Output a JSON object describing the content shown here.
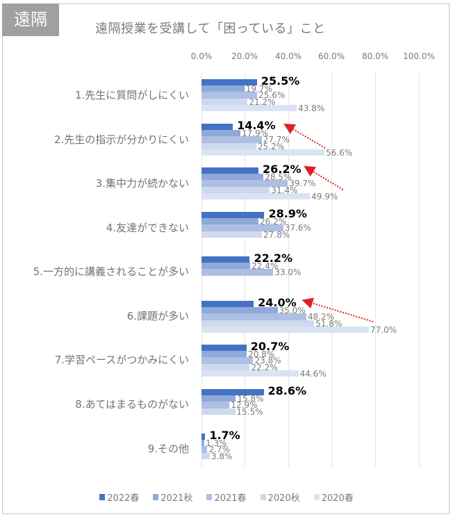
{
  "tag": "遠隔",
  "title": "遠隔授業を受講して「困っている」こと",
  "colors": {
    "2022春": "#4472c4",
    "2021秋": "#8fa9d9",
    "2021春": "#adc0e3",
    "2020秋": "#cfd9ee",
    "2020春": "#dae3f3",
    "arrow": "#e02020"
  },
  "chart_data": {
    "type": "bar",
    "orientation": "horizontal",
    "title": "遠隔授業を受講して「困っている」こと",
    "xlabel": "",
    "ylabel": "",
    "xlim": [
      0,
      100
    ],
    "xticks": [
      "0.0%",
      "20.0%",
      "40.0%",
      "60.0%",
      "80.0%",
      "100.0%"
    ],
    "grid": true,
    "legend_position": "bottom",
    "categories": [
      "1.先生に質問がしにくい",
      "2.先生の指示が分かりにくい",
      "3.集中力が続かない",
      "4.友達ができない",
      "5.一方的に講義されることが多い",
      "6.課題が多い",
      "7.学習ペースがつかみにくい",
      "8.あてはまるものがない",
      "9.その他"
    ],
    "series": [
      {
        "name": "2022春",
        "values": [
          25.5,
          14.4,
          26.2,
          28.9,
          22.2,
          24.0,
          20.7,
          28.6,
          1.7
        ]
      },
      {
        "name": "2021秋",
        "values": [
          19.7,
          17.9,
          28.5,
          26.2,
          22.4,
          35.0,
          20.8,
          15.8,
          1.3
        ]
      },
      {
        "name": "2021春",
        "values": [
          25.6,
          27.7,
          39.7,
          37.6,
          33.0,
          48.2,
          23.8,
          12.9,
          2.7
        ]
      },
      {
        "name": "2020秋",
        "values": [
          21.2,
          25.2,
          31.4,
          27.8,
          null,
          51.8,
          22.2,
          15.5,
          3.8
        ]
      },
      {
        "name": "2020春",
        "values": [
          43.8,
          56.6,
          49.9,
          null,
          null,
          77.0,
          44.6,
          null,
          null
        ]
      }
    ],
    "annotations": [
      {
        "type": "arrow",
        "from_series": "2020春",
        "to_series": "2022春",
        "category": "2.先生の指示が分かりにくい"
      },
      {
        "type": "arrow",
        "from_series": "2020春",
        "to_series": "2022春",
        "category": "3.集中力が続かない"
      },
      {
        "type": "arrow",
        "from_series": "2020春",
        "to_series": "2022春",
        "category": "6.課題が多い"
      }
    ]
  },
  "labels": {
    "g1": [
      "25.5%",
      "19.7%",
      "25.6%",
      "21.2%",
      "43.8%"
    ],
    "g2": [
      "14.4%",
      "17.9%",
      "27.7%",
      "25.2%",
      "56.6%"
    ],
    "g3": [
      "26.2%",
      "28.5%",
      "39.7%",
      "31.4%",
      "49.9%"
    ],
    "g4": [
      "28.9%",
      "26.2%",
      "37.6%",
      "27.8%"
    ],
    "g5": [
      "22.2%",
      "22.4%",
      "33.0%"
    ],
    "g6": [
      "24.0%",
      "35.0%",
      "48.2%",
      "51.8%",
      "77.0%"
    ],
    "g7": [
      "20.7%",
      "20.8%",
      "23.8%",
      "22.2%",
      "44.6%"
    ],
    "g8": [
      "28.6%",
      "15.8%",
      "12.9%",
      "15.5%"
    ],
    "g9": [
      "1.7%",
      "1.3%",
      "2.7%",
      "3.8%"
    ]
  },
  "legend": [
    "2022春",
    "2021秋",
    "2021春",
    "2020秋",
    "2020春"
  ]
}
